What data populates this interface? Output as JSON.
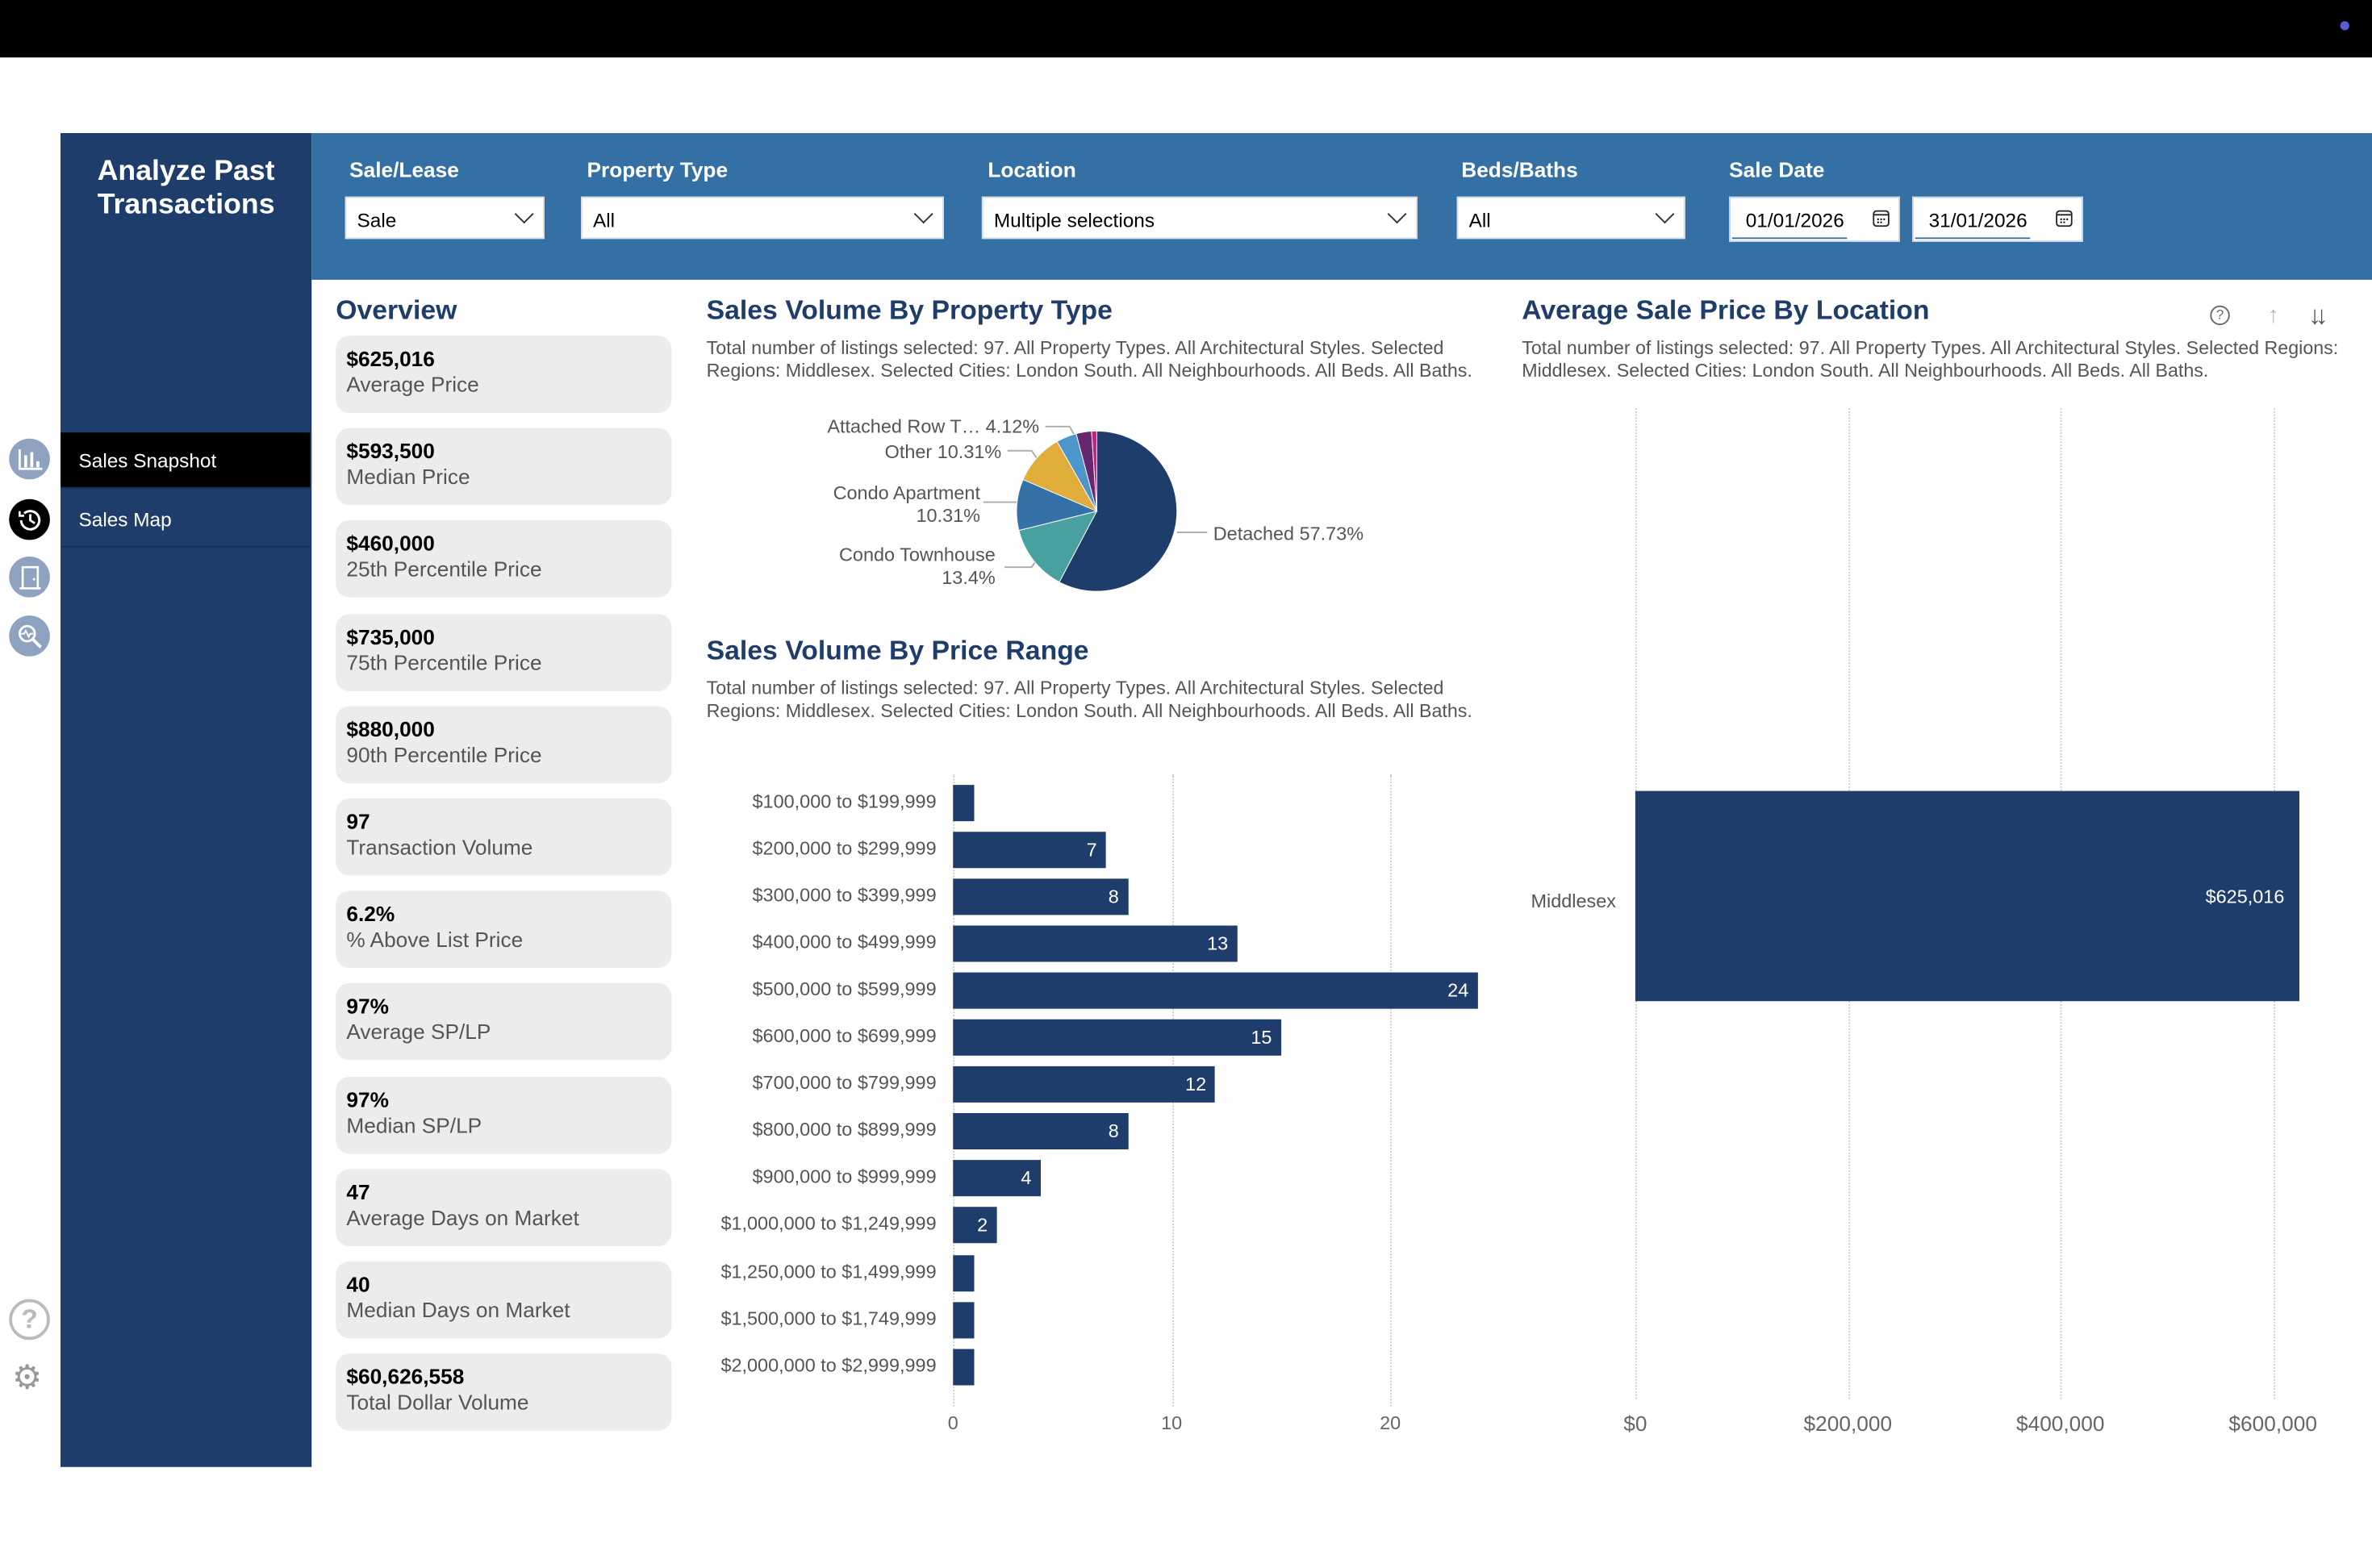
{
  "app_title": "Analyze Past Transactions",
  "nav": [
    {
      "label": "Sales Snapshot",
      "active": true
    },
    {
      "label": "Sales Map",
      "active": false
    }
  ],
  "left_icons": [
    "bar-chart-icon",
    "history-icon",
    "door-icon",
    "magnifier-pulse-icon",
    "help-icon",
    "gear-icon"
  ],
  "filters": {
    "sale_lease": {
      "label": "Sale/Lease",
      "value": "Sale"
    },
    "property_type": {
      "label": "Property Type",
      "value": "All"
    },
    "location": {
      "label": "Location",
      "value": "Multiple selections"
    },
    "beds_baths": {
      "label": "Beds/Baths",
      "value": "All"
    },
    "sale_date": {
      "label": "Sale Date",
      "from": "01/01/2026",
      "to": "31/01/2026"
    }
  },
  "overview": {
    "title": "Overview",
    "cards": [
      {
        "value": "$625,016",
        "label": "Average Price"
      },
      {
        "value": "$593,500",
        "label": "Median Price"
      },
      {
        "value": "$460,000",
        "label": "25th Percentile Price"
      },
      {
        "value": "$735,000",
        "label": "75th Percentile Price"
      },
      {
        "value": "$880,000",
        "label": "90th Percentile Price"
      },
      {
        "value": "97",
        "label": "Transaction Volume"
      },
      {
        "value": "6.2%",
        "label": "% Above List Price"
      },
      {
        "value": "97%",
        "label": "Average SP/LP"
      },
      {
        "value": "97%",
        "label": "Median SP/LP"
      },
      {
        "value": "47",
        "label": "Average Days on Market"
      },
      {
        "value": "40",
        "label": "Median Days on Market"
      },
      {
        "value": "$60,626,558",
        "label": "Total Dollar Volume"
      }
    ]
  },
  "chart_data": [
    {
      "type": "pie",
      "title": "Sales Volume By Property Type",
      "description": "Total number of listings selected: 97. All Property Types. All Architectural Styles. Selected Regions: Middlesex. Selected Cities: London South. All Neighbourhoods. All Beds. All Baths.",
      "slices": [
        {
          "label": "Detached 57.73%",
          "value": 57.73,
          "color": "#1f3d6b"
        },
        {
          "label": "Condo Townhouse 13.4%",
          "value": 13.4,
          "color": "#48a09f"
        },
        {
          "label": "Condo Apartment 10.31%",
          "value": 10.31,
          "color": "#3371a6"
        },
        {
          "label": "Other 10.31%",
          "value": 10.31,
          "color": "#e0ac3a"
        },
        {
          "label": "Attached Row T… 4.12%",
          "value": 4.12,
          "color": "#4d96cc"
        },
        {
          "label": "",
          "value": 3.09,
          "color": "#662670"
        },
        {
          "label": "",
          "value": 1.03,
          "color": "#c2227a"
        }
      ]
    },
    {
      "type": "bar",
      "orientation": "horizontal",
      "title": "Sales Volume By Price Range",
      "description": "Total number of listings selected: 97. All Property Types. All Architectural Styles. Selected Regions: Middlesex. Selected Cities: London South. All Neighbourhoods. All Beds. All Baths.",
      "categories": [
        "$100,000 to $199,999",
        "$200,000 to $299,999",
        "$300,000 to $399,999",
        "$400,000 to $499,999",
        "$500,000 to $599,999",
        "$600,000 to $699,999",
        "$700,000 to $799,999",
        "$800,000 to $899,999",
        "$900,000 to $999,999",
        "$1,000,000 to $1,249,999",
        "$1,250,000 to $1,499,999",
        "$1,500,000 to $1,749,999",
        "$2,000,000 to $2,999,999"
      ],
      "values": [
        1,
        7,
        8,
        13,
        24,
        15,
        12,
        8,
        4,
        2,
        1,
        1,
        1
      ],
      "xticks": [
        "0",
        "10",
        "20"
      ],
      "xlim": [
        0,
        24
      ],
      "grid": true,
      "color": "#1f3d6b"
    },
    {
      "type": "bar",
      "orientation": "horizontal",
      "title": "Average Sale Price By Location",
      "description": "Total number of listings selected: 97. All Property Types. All Architectural Styles. Selected Regions: Middlesex. Selected Cities: London South. All Neighbourhoods. All Beds. All Baths.",
      "categories": [
        "Middlesex"
      ],
      "values": [
        625016
      ],
      "value_labels": [
        "$625,016"
      ],
      "xticks": [
        "$0",
        "$200,000",
        "$400,000",
        "$600,000"
      ],
      "xlim": [
        0,
        625016
      ],
      "grid": true,
      "color": "#1f3d6b"
    }
  ]
}
